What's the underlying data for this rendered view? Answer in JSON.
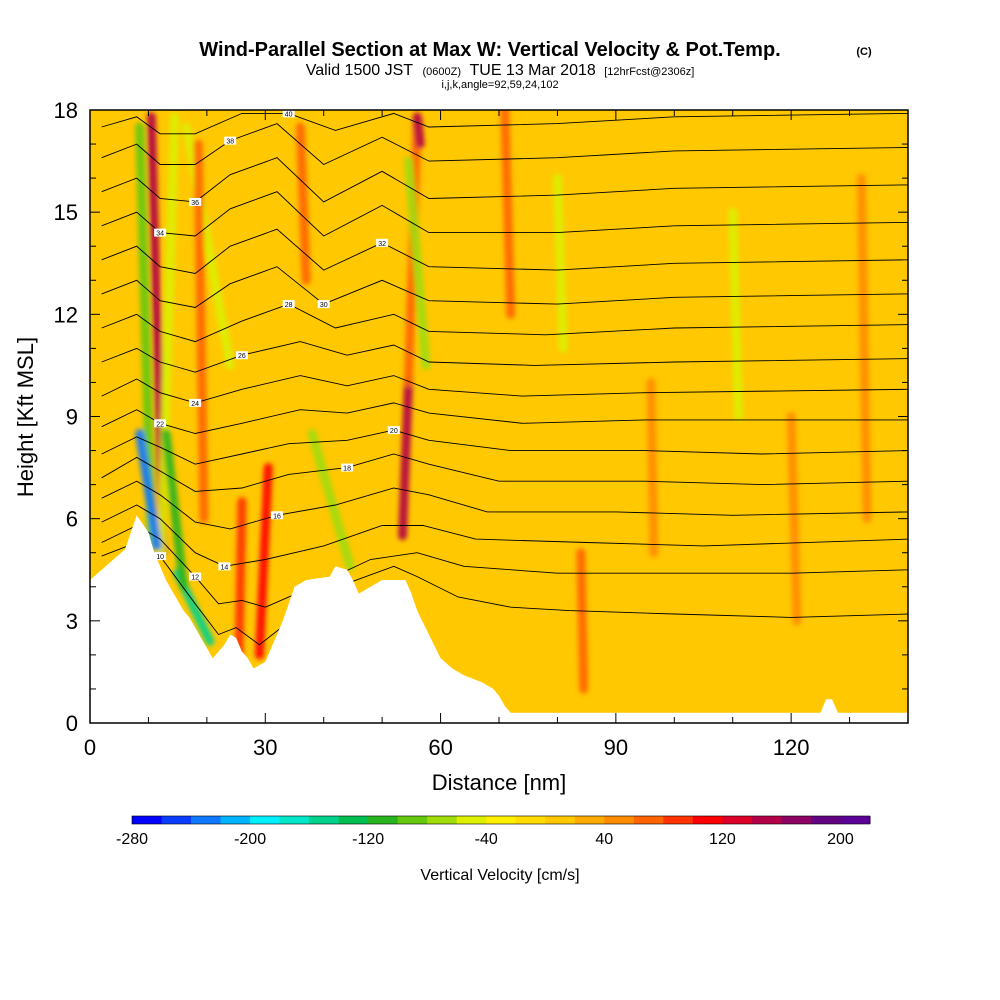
{
  "chart_data": {
    "type": "heatmap",
    "title": "Wind-Parallel Section at Max W: Vertical Velocity & Pot.Temp.",
    "title_mark": "(C)",
    "subtitle": {
      "valid": "Valid 1500 JST",
      "utc": "(0600Z)",
      "date": "TUE 13 Mar 2018",
      "forecast": "[12hrFcst@2306z]"
    },
    "indices": "i,j,k,angle=92,59,24,102",
    "xlabel": "Distance [nm]",
    "ylabel": "Height [Kft MSL]",
    "xlim": [
      0,
      140
    ],
    "ylim": [
      0,
      18
    ],
    "x_ticks": [
      "0",
      "30",
      "60",
      "90",
      "120"
    ],
    "y_ticks": [
      "0",
      "3",
      "6",
      "9",
      "12",
      "15",
      "18"
    ],
    "x_tick_values": [
      0,
      30,
      60,
      90,
      120
    ],
    "y_tick_values": [
      0,
      3,
      6,
      9,
      12,
      15,
      18
    ],
    "colorbar": {
      "label": "Vertical Velocity [cm/s]",
      "min": -280,
      "max": 220,
      "step": 20,
      "tick_labels": [
        "-280",
        "-200",
        "-120",
        "-40",
        "40",
        "120",
        "200"
      ],
      "tick_values": [
        -280,
        -200,
        -120,
        -40,
        40,
        120,
        200
      ],
      "colors": [
        "#0000ff",
        "#0a3cff",
        "#0f78ff",
        "#00b4ff",
        "#00f0ff",
        "#00e6c8",
        "#00d28c",
        "#00be50",
        "#28b41e",
        "#64c80f",
        "#a0dc0a",
        "#dcf000",
        "#fff000",
        "#ffdc00",
        "#ffc800",
        "#ffaa00",
        "#ff8c00",
        "#ff6400",
        "#ff3200",
        "#ff0000",
        "#dc0028",
        "#b40046",
        "#8c0064",
        "#640082",
        "#5a0096"
      ]
    },
    "terrain": [
      [
        0,
        4.2
      ],
      [
        2,
        4.5
      ],
      [
        4,
        4.8
      ],
      [
        6,
        5.1
      ],
      [
        7,
        5.6
      ],
      [
        8,
        6.1
      ],
      [
        10,
        5.6
      ],
      [
        11,
        5.0
      ],
      [
        12,
        4.6
      ],
      [
        13,
        4.2
      ],
      [
        14,
        3.9
      ],
      [
        15,
        3.6
      ],
      [
        16,
        3.3
      ],
      [
        17,
        3.1
      ],
      [
        18,
        2.8
      ],
      [
        19,
        2.5
      ],
      [
        20,
        2.2
      ],
      [
        21,
        1.9
      ],
      [
        22,
        2.1
      ],
      [
        23,
        2.3
      ],
      [
        24,
        2.6
      ],
      [
        25,
        2.5
      ],
      [
        26,
        2.1
      ],
      [
        27,
        1.9
      ],
      [
        28,
        1.6
      ],
      [
        30,
        1.8
      ],
      [
        31,
        2.2
      ],
      [
        32,
        2.6
      ],
      [
        33,
        3.0
      ],
      [
        34,
        3.5
      ],
      [
        35,
        4.0
      ],
      [
        37,
        4.2
      ],
      [
        41,
        4.3
      ],
      [
        42,
        4.6
      ],
      [
        44,
        4.5
      ],
      [
        45,
        4.2
      ],
      [
        46,
        3.8
      ],
      [
        47,
        3.9
      ],
      [
        50,
        4.2
      ],
      [
        54,
        4.2
      ],
      [
        55,
        3.8
      ],
      [
        56,
        3.3
      ],
      [
        58,
        2.6
      ],
      [
        60,
        1.9
      ],
      [
        62,
        1.6
      ],
      [
        64,
        1.4
      ],
      [
        67,
        1.2
      ],
      [
        69,
        1.0
      ],
      [
        70,
        0.8
      ],
      [
        71,
        0.5
      ],
      [
        72,
        0.3
      ],
      [
        90,
        0.3
      ],
      [
        105,
        0.3
      ],
      [
        125,
        0.3
      ],
      [
        126,
        0.7
      ],
      [
        127,
        0.7
      ],
      [
        128,
        0.3
      ],
      [
        140,
        0.3
      ]
    ],
    "isentropes": [
      {
        "label": "10",
        "pts": [
          [
            2,
            4.9
          ],
          [
            8,
            5.3
          ],
          [
            12,
            4.9
          ],
          [
            18,
            3.5
          ],
          [
            22,
            2.6
          ],
          [
            25,
            2.8
          ],
          [
            29,
            2.3
          ],
          [
            35,
            3.1
          ],
          [
            44,
            4.1
          ],
          [
            52,
            4.6
          ],
          [
            56,
            4.3
          ],
          [
            63,
            3.7
          ],
          [
            72,
            3.4
          ],
          [
            82,
            3.3
          ],
          [
            100,
            3.2
          ],
          [
            120,
            3.1
          ],
          [
            140,
            3.2
          ]
        ]
      },
      {
        "label": "12",
        "pts": [
          [
            2,
            5.3
          ],
          [
            8,
            5.8
          ],
          [
            12,
            5.4
          ],
          [
            18,
            4.3
          ],
          [
            22,
            3.5
          ],
          [
            26,
            3.6
          ],
          [
            30,
            3.4
          ],
          [
            38,
            4.0
          ],
          [
            48,
            4.8
          ],
          [
            56,
            5.0
          ],
          [
            64,
            4.6
          ],
          [
            80,
            4.4
          ],
          [
            100,
            4.4
          ],
          [
            120,
            4.4
          ],
          [
            140,
            4.5
          ]
        ]
      },
      {
        "label": "14",
        "pts": [
          [
            2,
            5.9
          ],
          [
            8,
            6.4
          ],
          [
            12,
            6.0
          ],
          [
            18,
            5.0
          ],
          [
            23,
            4.6
          ],
          [
            30,
            4.8
          ],
          [
            40,
            5.2
          ],
          [
            50,
            5.8
          ],
          [
            57,
            5.8
          ],
          [
            66,
            5.4
          ],
          [
            85,
            5.3
          ],
          [
            105,
            5.2
          ],
          [
            140,
            5.4
          ]
        ]
      },
      {
        "label": "16",
        "pts": [
          [
            2,
            6.6
          ],
          [
            8,
            7.1
          ],
          [
            12,
            6.7
          ],
          [
            18,
            5.9
          ],
          [
            24,
            5.7
          ],
          [
            32,
            6.1
          ],
          [
            42,
            6.4
          ],
          [
            52,
            6.9
          ],
          [
            58,
            6.7
          ],
          [
            68,
            6.2
          ],
          [
            90,
            6.2
          ],
          [
            110,
            6.1
          ],
          [
            140,
            6.2
          ]
        ]
      },
      {
        "label": "18",
        "pts": [
          [
            2,
            7.2
          ],
          [
            8,
            7.8
          ],
          [
            12,
            7.4
          ],
          [
            18,
            6.8
          ],
          [
            26,
            6.9
          ],
          [
            34,
            7.3
          ],
          [
            44,
            7.5
          ],
          [
            52,
            7.9
          ],
          [
            58,
            7.6
          ],
          [
            70,
            7.1
          ],
          [
            95,
            7.1
          ],
          [
            115,
            7.0
          ],
          [
            140,
            7.1
          ]
        ]
      },
      {
        "label": "20",
        "pts": [
          [
            2,
            7.9
          ],
          [
            8,
            8.4
          ],
          [
            12,
            8.1
          ],
          [
            18,
            7.6
          ],
          [
            26,
            7.9
          ],
          [
            34,
            8.2
          ],
          [
            44,
            8.3
          ],
          [
            52,
            8.6
          ],
          [
            58,
            8.3
          ],
          [
            72,
            8.0
          ],
          [
            95,
            8.0
          ],
          [
            115,
            7.9
          ],
          [
            140,
            8.0
          ]
        ]
      },
      {
        "label": "22",
        "pts": [
          [
            2,
            8.7
          ],
          [
            8,
            9.2
          ],
          [
            12,
            8.8
          ],
          [
            18,
            8.5
          ],
          [
            26,
            8.8
          ],
          [
            36,
            9.2
          ],
          [
            44,
            9.1
          ],
          [
            52,
            9.4
          ],
          [
            58,
            9.1
          ],
          [
            74,
            8.8
          ],
          [
            95,
            8.9
          ],
          [
            140,
            8.9
          ]
        ]
      },
      {
        "label": "24",
        "pts": [
          [
            2,
            9.6
          ],
          [
            8,
            10.1
          ],
          [
            12,
            9.7
          ],
          [
            18,
            9.4
          ],
          [
            26,
            9.8
          ],
          [
            36,
            10.2
          ],
          [
            44,
            9.9
          ],
          [
            52,
            10.2
          ],
          [
            58,
            9.8
          ],
          [
            74,
            9.6
          ],
          [
            95,
            9.7
          ],
          [
            140,
            9.8
          ]
        ]
      },
      {
        "label": "26",
        "pts": [
          [
            2,
            10.6
          ],
          [
            8,
            11.0
          ],
          [
            12,
            10.6
          ],
          [
            18,
            10.3
          ],
          [
            26,
            10.8
          ],
          [
            36,
            11.2
          ],
          [
            44,
            10.8
          ],
          [
            52,
            11.1
          ],
          [
            58,
            10.6
          ],
          [
            76,
            10.5
          ],
          [
            100,
            10.6
          ],
          [
            140,
            10.7
          ]
        ]
      },
      {
        "label": "28",
        "pts": [
          [
            2,
            11.6
          ],
          [
            8,
            12.0
          ],
          [
            12,
            11.5
          ],
          [
            18,
            11.2
          ],
          [
            26,
            11.8
          ],
          [
            34,
            12.3
          ],
          [
            42,
            11.6
          ],
          [
            52,
            12.0
          ],
          [
            58,
            11.5
          ],
          [
            78,
            11.4
          ],
          [
            100,
            11.6
          ],
          [
            140,
            11.7
          ]
        ]
      },
      {
        "label": "30",
        "pts": [
          [
            2,
            12.6
          ],
          [
            8,
            13.0
          ],
          [
            12,
            12.4
          ],
          [
            18,
            12.2
          ],
          [
            24,
            12.9
          ],
          [
            32,
            13.4
          ],
          [
            40,
            12.3
          ],
          [
            50,
            13.0
          ],
          [
            58,
            12.4
          ],
          [
            80,
            12.3
          ],
          [
            100,
            12.5
          ],
          [
            140,
            12.6
          ]
        ]
      },
      {
        "label": "32",
        "pts": [
          [
            2,
            13.6
          ],
          [
            8,
            14.0
          ],
          [
            12,
            13.4
          ],
          [
            18,
            13.2
          ],
          [
            24,
            14.0
          ],
          [
            32,
            14.5
          ],
          [
            40,
            13.3
          ],
          [
            50,
            14.1
          ],
          [
            58,
            13.4
          ],
          [
            80,
            13.3
          ],
          [
            100,
            13.5
          ],
          [
            140,
            13.6
          ]
        ]
      },
      {
        "label": "34",
        "pts": [
          [
            2,
            14.6
          ],
          [
            8,
            15.0
          ],
          [
            12,
            14.4
          ],
          [
            18,
            14.3
          ],
          [
            24,
            15.1
          ],
          [
            32,
            15.6
          ],
          [
            40,
            14.3
          ],
          [
            50,
            15.2
          ],
          [
            58,
            14.4
          ],
          [
            80,
            14.4
          ],
          [
            100,
            14.6
          ],
          [
            140,
            14.7
          ]
        ]
      },
      {
        "label": "36",
        "pts": [
          [
            2,
            15.6
          ],
          [
            8,
            16.0
          ],
          [
            12,
            15.4
          ],
          [
            18,
            15.3
          ],
          [
            24,
            16.1
          ],
          [
            32,
            16.6
          ],
          [
            40,
            15.3
          ],
          [
            50,
            16.2
          ],
          [
            58,
            15.4
          ],
          [
            80,
            15.5
          ],
          [
            100,
            15.7
          ],
          [
            140,
            15.8
          ]
        ]
      },
      {
        "label": "38",
        "pts": [
          [
            2,
            16.6
          ],
          [
            8,
            17.0
          ],
          [
            12,
            16.4
          ],
          [
            18,
            16.4
          ],
          [
            24,
            17.1
          ],
          [
            32,
            17.6
          ],
          [
            40,
            16.4
          ],
          [
            50,
            17.2
          ],
          [
            58,
            16.5
          ],
          [
            80,
            16.6
          ],
          [
            100,
            16.8
          ],
          [
            140,
            16.9
          ]
        ]
      },
      {
        "label": "40",
        "pts": [
          [
            2,
            17.5
          ],
          [
            8,
            17.8
          ],
          [
            12,
            17.3
          ],
          [
            18,
            17.3
          ],
          [
            26,
            17.9
          ],
          [
            34,
            17.9
          ],
          [
            42,
            17.4
          ],
          [
            52,
            17.9
          ],
          [
            58,
            17.5
          ],
          [
            80,
            17.6
          ],
          [
            100,
            17.8
          ],
          [
            140,
            17.9
          ]
        ]
      }
    ],
    "w_features": [
      {
        "x0": 10.5,
        "y0": 5.2,
        "x1": 8.5,
        "y1": 17.5,
        "w": -90
      },
      {
        "x0": 12.5,
        "y0": 5.0,
        "x1": 10.5,
        "y1": 17.8,
        "w": 150
      },
      {
        "x0": 12.2,
        "y0": 5.0,
        "x1": 14.5,
        "y1": 17.8,
        "w": -60
      },
      {
        "x0": 8.5,
        "y0": 8.5,
        "x1": 11.5,
        "y1": 5.2,
        "w": -230
      },
      {
        "x0": 15.0,
        "y0": 4.4,
        "x1": 20.5,
        "y1": 2.4,
        "w": -150
      },
      {
        "x0": 13.0,
        "y0": 8.5,
        "x1": 16.0,
        "y1": 4.0,
        "w": -110
      },
      {
        "x0": 16.5,
        "y0": 17.5,
        "x1": 24.0,
        "y1": 10.5,
        "w": -45
      },
      {
        "x0": 29.0,
        "y0": 2.0,
        "x1": 30.5,
        "y1": 7.5,
        "w": 100
      },
      {
        "x0": 25.5,
        "y0": 2.0,
        "x1": 26.0,
        "y1": 6.5,
        "w": 85
      },
      {
        "x0": 18.5,
        "y0": 17.0,
        "x1": 19.5,
        "y1": 6.0,
        "w": 70
      },
      {
        "x0": 36.0,
        "y0": 17.5,
        "x1": 37.0,
        "y1": 13.0,
        "w": 70
      },
      {
        "x0": 44.5,
        "y0": 4.6,
        "x1": 38.0,
        "y1": 8.5,
        "w": -70
      },
      {
        "x0": 53.5,
        "y0": 5.5,
        "x1": 54.5,
        "y1": 10.0,
        "w": 140
      },
      {
        "x0": 54.5,
        "y0": 10.0,
        "x1": 56.0,
        "y1": 17.8,
        "w": 70
      },
      {
        "x0": 56.0,
        "y0": 17.8,
        "x1": 56.5,
        "y1": 17.0,
        "w": 150
      },
      {
        "x0": 54.5,
        "y0": 16.5,
        "x1": 57.5,
        "y1": 10.5,
        "w": -80
      },
      {
        "x0": 71.0,
        "y0": 18.0,
        "x1": 72.0,
        "y1": 12.0,
        "w": 60
      },
      {
        "x0": 80.0,
        "y0": 16.0,
        "x1": 81.0,
        "y1": 11.0,
        "w": -50
      },
      {
        "x0": 84.0,
        "y0": 5.0,
        "x1": 84.5,
        "y1": 1.0,
        "w": 60
      },
      {
        "x0": 96.0,
        "y0": 10.0,
        "x1": 96.5,
        "y1": 5.0,
        "w": 55
      },
      {
        "x0": 110.0,
        "y0": 15.0,
        "x1": 111.0,
        "y1": 9.0,
        "w": -45
      },
      {
        "x0": 120.0,
        "y0": 9.0,
        "x1": 121.0,
        "y1": 3.0,
        "w": 55
      },
      {
        "x0": 132.0,
        "y0": 16.0,
        "x1": 133.0,
        "y1": 6.0,
        "w": 55
      }
    ]
  }
}
